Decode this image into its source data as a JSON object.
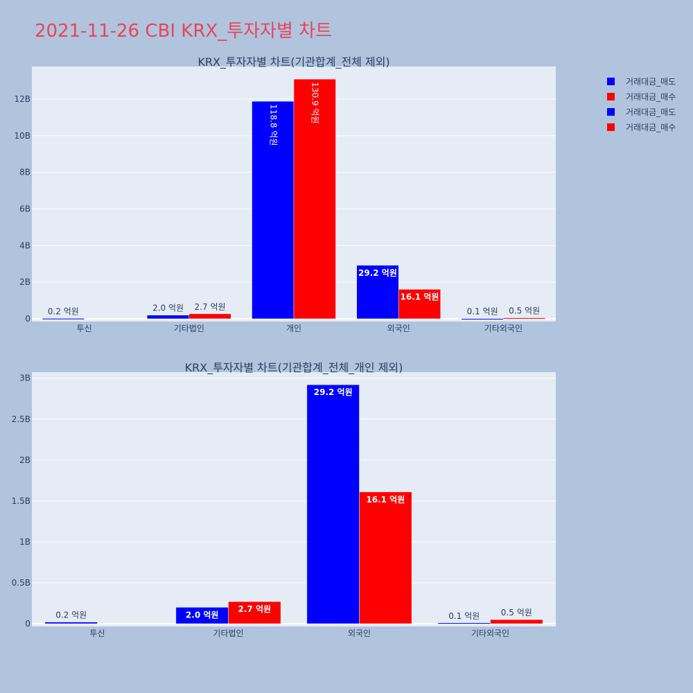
{
  "page_title": "2021-11-26 CBI KRX_투자자별 차트",
  "colors": {
    "background": "#b0c4de",
    "plot_bg": "#e5ecf6",
    "sell": "#0000ff",
    "buy": "#ff0000",
    "title": "#e8455a"
  },
  "legend": [
    {
      "label": "거래대금_매도",
      "color": "#0000ff"
    },
    {
      "label": "거래대금_매수",
      "color": "#ff0000"
    },
    {
      "label": "거래대금_매도",
      "color": "#0000ff"
    },
    {
      "label": "거래대금_매수",
      "color": "#ff0000"
    }
  ],
  "chart_data": [
    {
      "type": "bar",
      "title": "KRX_투자자별 차트(기관합계_전체 제외)",
      "categories": [
        "투신",
        "기타법인",
        "개인",
        "외국인",
        "기타외국인"
      ],
      "series": [
        {
          "name": "거래대금_매도",
          "color": "#0000ff",
          "values": [
            20000000,
            200000000,
            11880000000,
            2920000000,
            10000000
          ],
          "labels": [
            "0.2 억원",
            "2.0 억원",
            "118.8 억원",
            "29.2 억원",
            "0.1 억원"
          ]
        },
        {
          "name": "거래대금_매수",
          "color": "#ff0000",
          "values": [
            0,
            270000000,
            13090000000,
            1610000000,
            50000000
          ],
          "labels": [
            "",
            "2.7 억원",
            "130.9 억원",
            "16.1 억원",
            "0.5 억원"
          ]
        }
      ],
      "ylim": [
        0,
        13780000000
      ],
      "yticks": [
        0,
        2000000000,
        4000000000,
        6000000000,
        8000000000,
        10000000000,
        12000000000
      ],
      "ytick_labels": [
        "0",
        "2B",
        "4B",
        "6B",
        "8B",
        "10B",
        "12B"
      ],
      "grid": true
    },
    {
      "type": "bar",
      "title": "KRX_투자자별 차트(기관합계_전체_개인 제외)",
      "categories": [
        "투신",
        "기타법인",
        "외국인",
        "기타외국인"
      ],
      "series": [
        {
          "name": "거래대금_매도",
          "color": "#0000ff",
          "values": [
            20000000,
            200000000,
            2920000000,
            10000000
          ],
          "labels": [
            "0.2 억원",
            "2.0 억원",
            "29.2 억원",
            "0.1 억원"
          ]
        },
        {
          "name": "거래대금_매수",
          "color": "#ff0000",
          "values": [
            0,
            270000000,
            1610000000,
            50000000
          ],
          "labels": [
            "",
            "2.7 억원",
            "16.1 억원",
            "0.5 억원"
          ]
        }
      ],
      "ylim": [
        0,
        3074000000
      ],
      "yticks": [
        0,
        500000000,
        1000000000,
        1500000000,
        2000000000,
        2500000000,
        3000000000
      ],
      "ytick_labels": [
        "0",
        "0.5B",
        "1B",
        "1.5B",
        "2B",
        "2.5B",
        "3B"
      ],
      "grid": true
    }
  ]
}
